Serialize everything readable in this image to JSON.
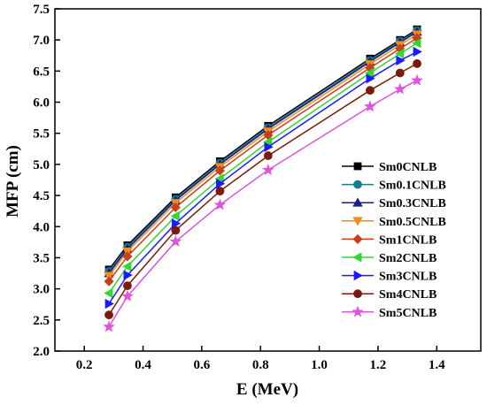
{
  "chart_data": {
    "type": "line",
    "title": "",
    "xlabel": "E (MeV)",
    "ylabel": "MFP (cm)",
    "xlim": [
      0.1,
      1.55
    ],
    "ylim": [
      2.0,
      7.5
    ],
    "xticks": [
      0.2,
      0.4,
      0.6,
      0.8,
      1.0,
      1.2,
      1.4
    ],
    "yticks": [
      2.0,
      2.5,
      3.0,
      3.5,
      4.0,
      4.5,
      5.0,
      5.5,
      6.0,
      6.5,
      7.0,
      7.5
    ],
    "xtick_labels": [
      "0.2",
      "0.4",
      "0.6",
      "0.8",
      "1.0",
      "1.2",
      "1.4"
    ],
    "ytick_labels": [
      "2.0",
      "2.5",
      "3.0",
      "3.5",
      "4.0",
      "4.5",
      "5.0",
      "5.5",
      "6.0",
      "6.5",
      "7.0",
      "7.5"
    ],
    "grid": false,
    "legend_position": "right",
    "x": [
      0.284,
      0.347,
      0.511,
      0.662,
      0.826,
      1.173,
      1.275,
      1.333
    ],
    "series": [
      {
        "name": "Sm0CNLB",
        "color": "#000000",
        "marker": "square",
        "values": [
          3.31,
          3.7,
          4.47,
          5.05,
          5.62,
          6.7,
          7.0,
          7.17
        ]
      },
      {
        "name": "Sm0.1CNLB",
        "color": "#1a7a8a",
        "marker": "circle",
        "values": [
          3.28,
          3.67,
          4.44,
          5.02,
          5.59,
          6.67,
          6.98,
          7.15
        ]
      },
      {
        "name": "Sm0.3CNLB",
        "color": "#1c1c8c",
        "marker": "triangle-up",
        "values": [
          3.25,
          3.64,
          4.42,
          5.0,
          5.57,
          6.65,
          6.96,
          7.13
        ]
      },
      {
        "name": "Sm0.5CNLB",
        "color": "#f28c1a",
        "marker": "triangle-down",
        "values": [
          3.21,
          3.6,
          4.38,
          4.96,
          5.53,
          6.61,
          6.92,
          7.09
        ]
      },
      {
        "name": "Sm1CNLB",
        "color": "#c8401a",
        "marker": "diamond",
        "values": [
          3.12,
          3.52,
          4.31,
          4.9,
          5.47,
          6.55,
          6.86,
          7.03
        ]
      },
      {
        "name": "Sm2CNLB",
        "color": "#33d633",
        "marker": "triangle-left",
        "values": [
          2.93,
          3.36,
          4.17,
          4.77,
          5.36,
          6.47,
          6.78,
          6.95
        ]
      },
      {
        "name": "Sm3CNLB",
        "color": "#1a1aff",
        "marker": "triangle-right",
        "values": [
          2.76,
          3.22,
          4.05,
          4.69,
          5.28,
          6.38,
          6.67,
          6.81
        ]
      },
      {
        "name": "Sm4CNLB",
        "color": "#7a1a0a",
        "marker": "circle",
        "values": [
          2.58,
          3.05,
          3.94,
          4.57,
          5.14,
          6.19,
          6.47,
          6.62
        ]
      },
      {
        "name": "Sm5CNLB",
        "color": "#e052e0",
        "marker": "star",
        "values": [
          2.39,
          2.88,
          3.76,
          4.35,
          4.91,
          5.93,
          6.21,
          6.35
        ]
      }
    ]
  }
}
